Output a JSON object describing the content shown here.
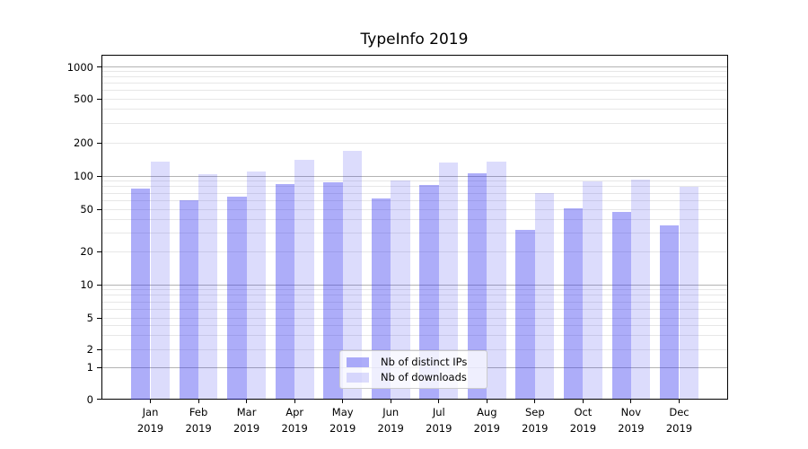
{
  "title": "TypeInfo 2019",
  "chart_data": {
    "type": "bar",
    "title": "TypeInfo 2019",
    "categories": [
      "Jan 2019",
      "Feb 2019",
      "Mar 2019",
      "Apr 2019",
      "May 2019",
      "Jun 2019",
      "Jul 2019",
      "Aug 2019",
      "Sep 2019",
      "Oct 2019",
      "Nov 2019",
      "Dec 2019"
    ],
    "month_labels": [
      "Jan",
      "Feb",
      "Mar",
      "Apr",
      "May",
      "Jun",
      "Jul",
      "Aug",
      "Sep",
      "Oct",
      "Nov",
      "Dec"
    ],
    "year_label": "2019",
    "series": [
      {
        "name": "Nb of distinct IPs",
        "color": "rgba(50,50,240,0.40)",
        "values": [
          77,
          60,
          65,
          85,
          88,
          63,
          83,
          105,
          32,
          51,
          47,
          35
        ]
      },
      {
        "name": "Nb of downloads",
        "color": "rgba(50,50,240,0.17)",
        "values": [
          134,
          103,
          109,
          140,
          169,
          91,
          133,
          134,
          70,
          90,
          93,
          80
        ]
      }
    ],
    "yscale": "symlog",
    "ylim": [
      0,
      1000
    ],
    "yticks": [
      0,
      1,
      2,
      5,
      10,
      20,
      50,
      100,
      200,
      500,
      1000
    ],
    "grid": true,
    "legend": {
      "position": "lower center",
      "entries": [
        "Nb of distinct IPs",
        "Nb of downloads"
      ]
    }
  },
  "colors": {
    "major_grid": "#b3b3b3",
    "minor_grid": "#e7e7e7",
    "axis": "#000000",
    "bar_distinct_ips": "rgba(50,50,240,0.40)",
    "bar_downloads": "rgba(50,50,240,0.17)"
  }
}
